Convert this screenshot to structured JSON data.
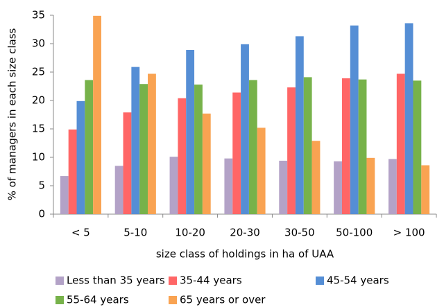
{
  "chart_data": {
    "type": "bar",
    "y_label": "% of managers in each size class",
    "x_label": "size class of holdings in ha of UAA",
    "categories": [
      "< 5",
      "5-10",
      "10-20",
      "20-30",
      "30-50",
      "50-100",
      "> 100"
    ],
    "series": [
      {
        "name": "Less than 35 years",
        "color": "#b3a2c7",
        "values": [
          6.7,
          8.5,
          10.1,
          9.8,
          9.4,
          9.3,
          9.7
        ]
      },
      {
        "name": "35-44 years",
        "color": "#ff6666",
        "values": [
          14.9,
          17.9,
          20.4,
          21.4,
          22.3,
          23.9,
          24.7
        ]
      },
      {
        "name": "45-54 years",
        "color": "#558ed5",
        "values": [
          19.9,
          25.9,
          28.9,
          29.9,
          31.3,
          33.2,
          33.6
        ]
      },
      {
        "name": "55-64 years",
        "color": "#77b24a",
        "values": [
          23.6,
          22.9,
          22.8,
          23.6,
          24.1,
          23.7,
          23.5
        ]
      },
      {
        "name": "65 years or over",
        "color": "#f9a352",
        "values": [
          34.9,
          24.7,
          17.7,
          15.2,
          12.9,
          9.9,
          8.6
        ]
      }
    ],
    "ylim": [
      0,
      35
    ],
    "yticks": [
      0,
      5,
      10,
      15,
      20,
      25,
      30,
      35
    ],
    "grid": false
  }
}
